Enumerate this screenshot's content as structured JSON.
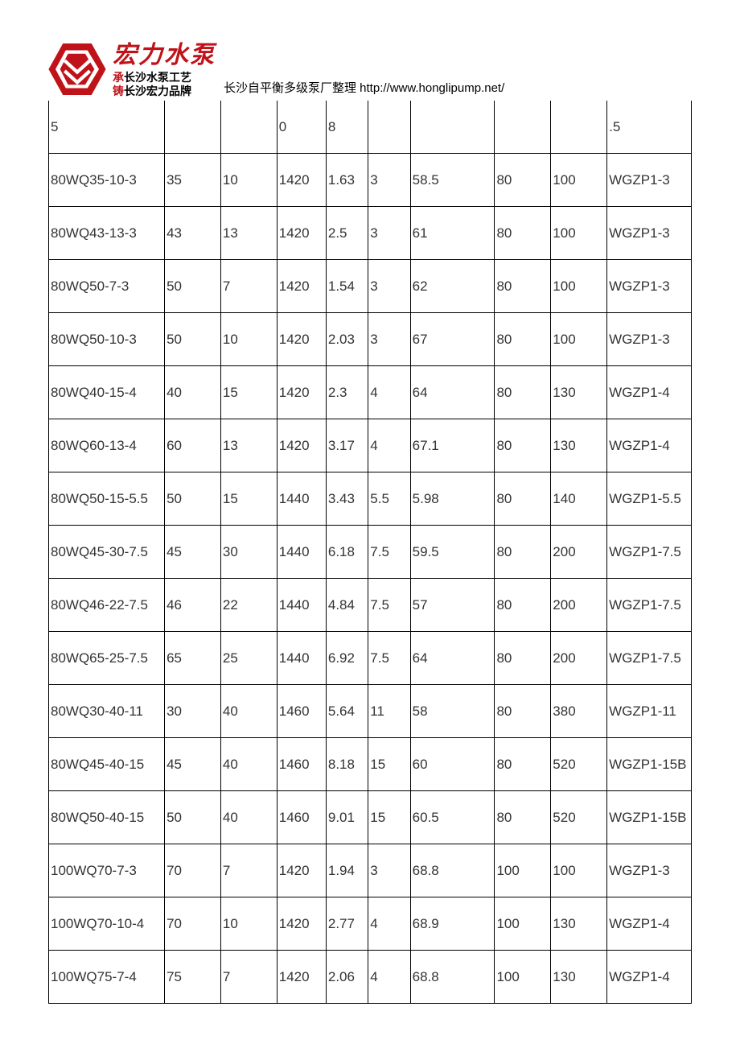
{
  "header": {
    "brand_main": "宏力水泵",
    "brand_line1_red": "承",
    "brand_line1_blk": "长沙水泵工艺",
    "brand_line2_red": "铸",
    "brand_line2_blk": "长沙宏力品牌",
    "header_text": "长沙自平衡多级泵厂整理 http://www.honglipump.net/",
    "logo_fill": "#c01319"
  },
  "table": {
    "border_color": "#000000",
    "text_color": "#333333",
    "font_size": 17,
    "col_widths_pct": [
      16.5,
      8,
      8,
      7,
      6,
      6,
      12,
      8,
      8,
      12
    ],
    "rows": [
      [
        "5",
        "",
        "",
        "0",
        "8",
        "",
        "",
        "",
        "",
        ".5"
      ],
      [
        "80WQ35-10-3",
        "35",
        "10",
        "1420",
        "1.63",
        "3",
        "58.5",
        "80",
        "100",
        "WGZP1-3"
      ],
      [
        "80WQ43-13-3",
        "43",
        "13",
        "1420",
        "2.5",
        "3",
        "61",
        "80",
        "100",
        "WGZP1-3"
      ],
      [
        "80WQ50-7-3",
        "50",
        "7",
        "1420",
        "1.54",
        "3",
        "62",
        "80",
        "100",
        "WGZP1-3"
      ],
      [
        "80WQ50-10-3",
        "50",
        "10",
        "1420",
        "2.03",
        "3",
        "67",
        "80",
        "100",
        "WGZP1-3"
      ],
      [
        "80WQ40-15-4",
        "40",
        "15",
        "1420",
        "2.3",
        "4",
        "64",
        "80",
        "130",
        "WGZP1-4"
      ],
      [
        "80WQ60-13-4",
        "60",
        "13",
        "1420",
        "3.17",
        "4",
        "67.1",
        "80",
        "130",
        "WGZP1-4"
      ],
      [
        "80WQ50-15-5.5",
        "50",
        "15",
        "1440",
        "3.43",
        "5.5",
        "5.98",
        "80",
        "140",
        "WGZP1-5.5"
      ],
      [
        "80WQ45-30-7.5",
        "45",
        "30",
        "1440",
        "6.18",
        "7.5",
        "59.5",
        "80",
        "200",
        "WGZP1-7.5"
      ],
      [
        "80WQ46-22-7.5",
        "46",
        "22",
        "1440",
        "4.84",
        "7.5",
        "57",
        "80",
        "200",
        "WGZP1-7.5"
      ],
      [
        "80WQ65-25-7.5",
        "65",
        "25",
        "1440",
        "6.92",
        "7.5",
        "64",
        "80",
        "200",
        "WGZP1-7.5"
      ],
      [
        "80WQ30-40-11",
        "30",
        "40",
        "1460",
        "5.64",
        "11",
        "58",
        "80",
        "380",
        "WGZP1-11"
      ],
      [
        "80WQ45-40-15",
        "45",
        "40",
        "1460",
        "8.18",
        "15",
        "60",
        "80",
        "520",
        "WGZP1-15B"
      ],
      [
        "80WQ50-40-15",
        "50",
        "40",
        "1460",
        "9.01",
        "15",
        "60.5",
        "80",
        "520",
        "WGZP1-15B"
      ],
      [
        "100WQ70-7-3",
        "70",
        "7",
        "1420",
        "1.94",
        "3",
        "68.8",
        "100",
        "100",
        "WGZP1-3"
      ],
      [
        "100WQ70-10-4",
        "70",
        "10",
        "1420",
        "2.77",
        "4",
        "68.9",
        "100",
        "130",
        "WGZP1-4"
      ],
      [
        "100WQ75-7-4",
        "75",
        "7",
        "1420",
        "2.06",
        "4",
        "68.8",
        "100",
        "130",
        "WGZP1-4"
      ]
    ]
  }
}
